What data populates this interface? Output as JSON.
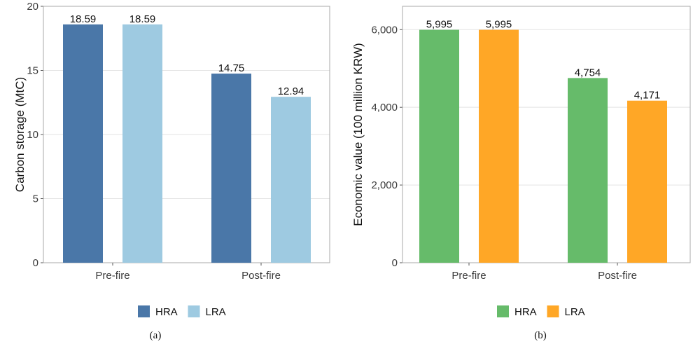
{
  "chart_data": [
    {
      "type": "bar",
      "categories": [
        "Pre-fire",
        "Post-fire"
      ],
      "series": [
        {
          "name": "HRA",
          "values": [
            18.59,
            14.75
          ],
          "labels": [
            "18.59",
            "14.75"
          ],
          "color": "#4a77a8"
        },
        {
          "name": "LRA",
          "values": [
            18.59,
            12.94
          ],
          "labels": [
            "18.59",
            "12.94"
          ],
          "color": "#9ecae1"
        }
      ],
      "ylabel": "Carbon storage (MtC)",
      "ylim": [
        0,
        20
      ],
      "yticks": [
        0,
        5,
        10,
        15,
        20
      ],
      "ytick_labels": [
        "0",
        "5",
        "10",
        "15",
        "20"
      ],
      "grid": true,
      "legend_position": "bottom",
      "caption": "(a)"
    },
    {
      "type": "bar",
      "categories": [
        "Pre-fire",
        "Post-fire"
      ],
      "series": [
        {
          "name": "HRA",
          "values": [
            5995,
            4754
          ],
          "labels": [
            "5,995",
            "4,754"
          ],
          "color": "#66bb6a"
        },
        {
          "name": "LRA",
          "values": [
            5995,
            4171
          ],
          "labels": [
            "5,995",
            "4,171"
          ],
          "color": "#ffa726"
        }
      ],
      "ylabel": "Economic value (100 million KRW)",
      "ylim": [
        0,
        6600
      ],
      "yticks": [
        0,
        2000,
        4000,
        6000
      ],
      "ytick_labels": [
        "0",
        "2,000",
        "4,000",
        "6,000"
      ],
      "grid": true,
      "legend_position": "bottom",
      "caption": "(b)"
    }
  ]
}
